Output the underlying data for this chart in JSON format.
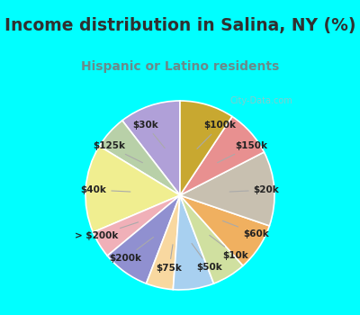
{
  "title": "Income distribution in Salina, NY (%)",
  "subtitle": "Hispanic or Latino residents",
  "labels": [
    "$100k",
    "$150k",
    "$20k",
    "$60k",
    "$10k",
    "$50k",
    "$75k",
    "$200k",
    "> $200k",
    "$40k",
    "$125k",
    "$30k"
  ],
  "values": [
    9,
    5,
    13,
    4,
    7,
    4,
    6,
    5,
    7,
    11,
    7,
    8
  ],
  "colors": [
    "#b0a0d8",
    "#b8d0a8",
    "#f0ee90",
    "#f0b0b8",
    "#9090d0",
    "#f8d8a0",
    "#a8d0f0",
    "#d0e0a0",
    "#f0b060",
    "#c8c0b0",
    "#e89090",
    "#c8a830"
  ],
  "background_chart": "#dff0e8",
  "watermark": "City-Data.com",
  "title_color": "#303030",
  "subtitle_color": "#6a8a8a",
  "label_fontsize": 7.5,
  "startangle": 90
}
